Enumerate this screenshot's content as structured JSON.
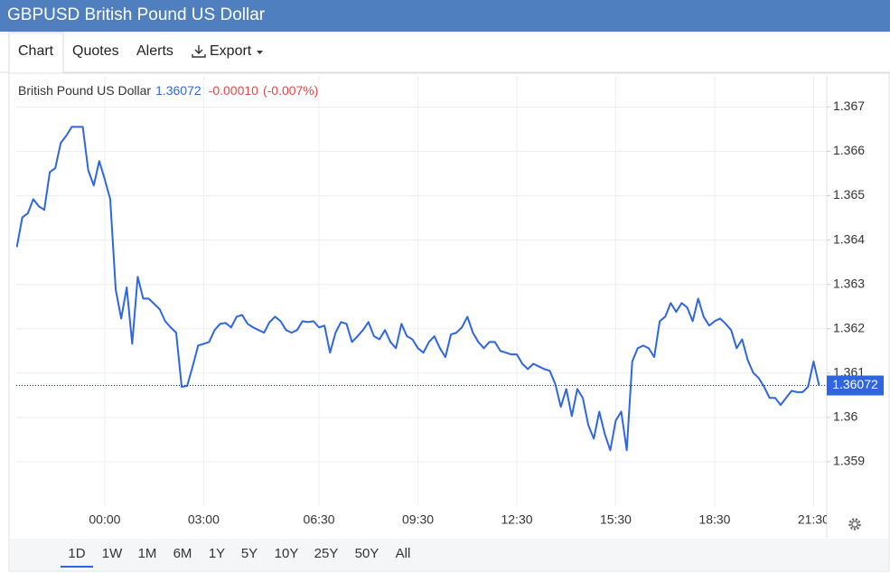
{
  "header": {
    "title": "GBPUSD British Pound US Dollar"
  },
  "tabs": [
    "Chart",
    "Quotes",
    "Alerts",
    "Export"
  ],
  "ranges": [
    "1D",
    "1W",
    "1M",
    "6M",
    "1Y",
    "5Y",
    "10Y",
    "25Y",
    "50Y",
    "All"
  ],
  "chart_data": {
    "type": "line",
    "x": [
      -160,
      -150,
      -140,
      -130,
      -120,
      -110,
      -100,
      -90,
      -80,
      -70,
      -60,
      -50,
      -40,
      -30,
      -20,
      -10,
      0,
      10,
      20,
      30,
      40,
      50,
      60,
      70,
      80,
      90,
      100,
      110,
      120,
      130,
      140,
      150,
      160,
      170,
      180,
      190,
      200,
      210,
      220,
      230,
      240,
      250,
      260,
      270,
      280,
      290,
      300,
      310,
      320,
      330,
      340,
      350,
      360,
      370,
      380,
      390,
      400,
      410,
      420,
      430,
      440,
      450,
      460,
      470,
      480,
      490,
      500,
      510,
      520,
      530,
      540,
      550,
      560,
      570,
      580,
      590,
      600,
      610,
      620,
      630,
      640,
      650,
      660,
      670,
      680,
      690,
      700,
      710,
      720,
      730,
      740,
      750,
      760,
      770,
      780,
      790,
      800,
      810,
      820,
      830,
      840,
      850,
      860,
      870,
      880,
      890,
      900,
      910,
      920,
      930,
      940,
      950,
      960,
      970,
      980,
      990,
      1000,
      1010,
      1020,
      1030,
      1040,
      1050,
      1060,
      1070,
      1080,
      1090,
      1100,
      1110,
      1120,
      1130,
      1140,
      1150,
      1160,
      1170,
      1180,
      1190,
      1200,
      1210,
      1220,
      1230,
      1240,
      1250,
      1260,
      1270,
      1280,
      1290,
      1300
    ],
    "series": [
      {
        "name": "British Pound US Dollar",
        "color": "#2f66e0",
        "values": [
          1.36384,
          1.36451,
          1.3646,
          1.36492,
          1.36476,
          1.36468,
          1.36553,
          1.36562,
          1.36619,
          1.36635,
          1.36655,
          1.36655,
          1.36655,
          1.36557,
          1.36523,
          1.36578,
          1.36537,
          1.36492,
          1.36288,
          1.36223,
          1.36293,
          1.36166,
          1.36317,
          1.36268,
          1.36268,
          1.36256,
          1.36244,
          1.36217,
          1.36203,
          1.36191,
          1.36069,
          1.36071,
          1.36115,
          1.36162,
          1.36166,
          1.3617,
          1.36197,
          1.36211,
          1.36213,
          1.36203,
          1.36227,
          1.36231,
          1.36211,
          1.36203,
          1.36197,
          1.36191,
          1.36215,
          1.36227,
          1.36217,
          1.36197,
          1.36191,
          1.36197,
          1.36217,
          1.36215,
          1.36217,
          1.36203,
          1.36207,
          1.36146,
          1.36191,
          1.36215,
          1.36211,
          1.3617,
          1.36183,
          1.36197,
          1.36215,
          1.36183,
          1.36176,
          1.36197,
          1.3617,
          1.36156,
          1.36211,
          1.36183,
          1.36176,
          1.36156,
          1.36146,
          1.3617,
          1.36183,
          1.36156,
          1.36136,
          1.36187,
          1.36191,
          1.36203,
          1.36227,
          1.36191,
          1.3617,
          1.36156,
          1.3617,
          1.3617,
          1.3615,
          1.36146,
          1.36142,
          1.36142,
          1.36121,
          1.36109,
          1.36121,
          1.36115,
          1.36109,
          1.36105,
          1.36075,
          1.36024,
          1.36064,
          1.36003,
          1.36064,
          1.36044,
          1.35983,
          1.35952,
          1.36013,
          1.35963,
          1.35926,
          1.35993,
          1.36013,
          1.35926,
          1.36126,
          1.36156,
          1.36162,
          1.36156,
          1.36136,
          1.36217,
          1.36227,
          1.36258,
          1.36238,
          1.36258,
          1.36248,
          1.36217,
          1.36268,
          1.36227,
          1.36207,
          1.36217,
          1.36223,
          1.36211,
          1.36197,
          1.36156,
          1.36176,
          1.3613,
          1.36101,
          1.36089,
          1.36069,
          1.36044,
          1.36044,
          1.36028,
          1.36044,
          1.3606,
          1.36057,
          1.36057,
          1.36069,
          1.36126,
          1.36072
        ]
      }
    ],
    "last_price": 1.36072,
    "change": {
      "value": -0.0001,
      "label": "-0.00010"
    },
    "change_percent": {
      "value": -0.007,
      "label": "(-0.007%)"
    },
    "xlim": [
      -161,
      1314
    ],
    "xticks": [
      {
        "value": 0,
        "label": "00:00"
      },
      {
        "value": 180,
        "label": "03:00"
      },
      {
        "value": 390,
        "label": "06:30"
      },
      {
        "value": 570,
        "label": "09:30"
      },
      {
        "value": 750,
        "label": "12:30"
      },
      {
        "value": 930,
        "label": "15:30"
      },
      {
        "value": 1110,
        "label": "18:30"
      },
      {
        "value": 1290,
        "label": "21:30"
      }
    ],
    "ylim": [
      1.358,
      1.3677
    ],
    "yticks": [
      1.359,
      1.36,
      1.361,
      1.362,
      1.363,
      1.364,
      1.365,
      1.366,
      1.367
    ],
    "grid": true
  }
}
